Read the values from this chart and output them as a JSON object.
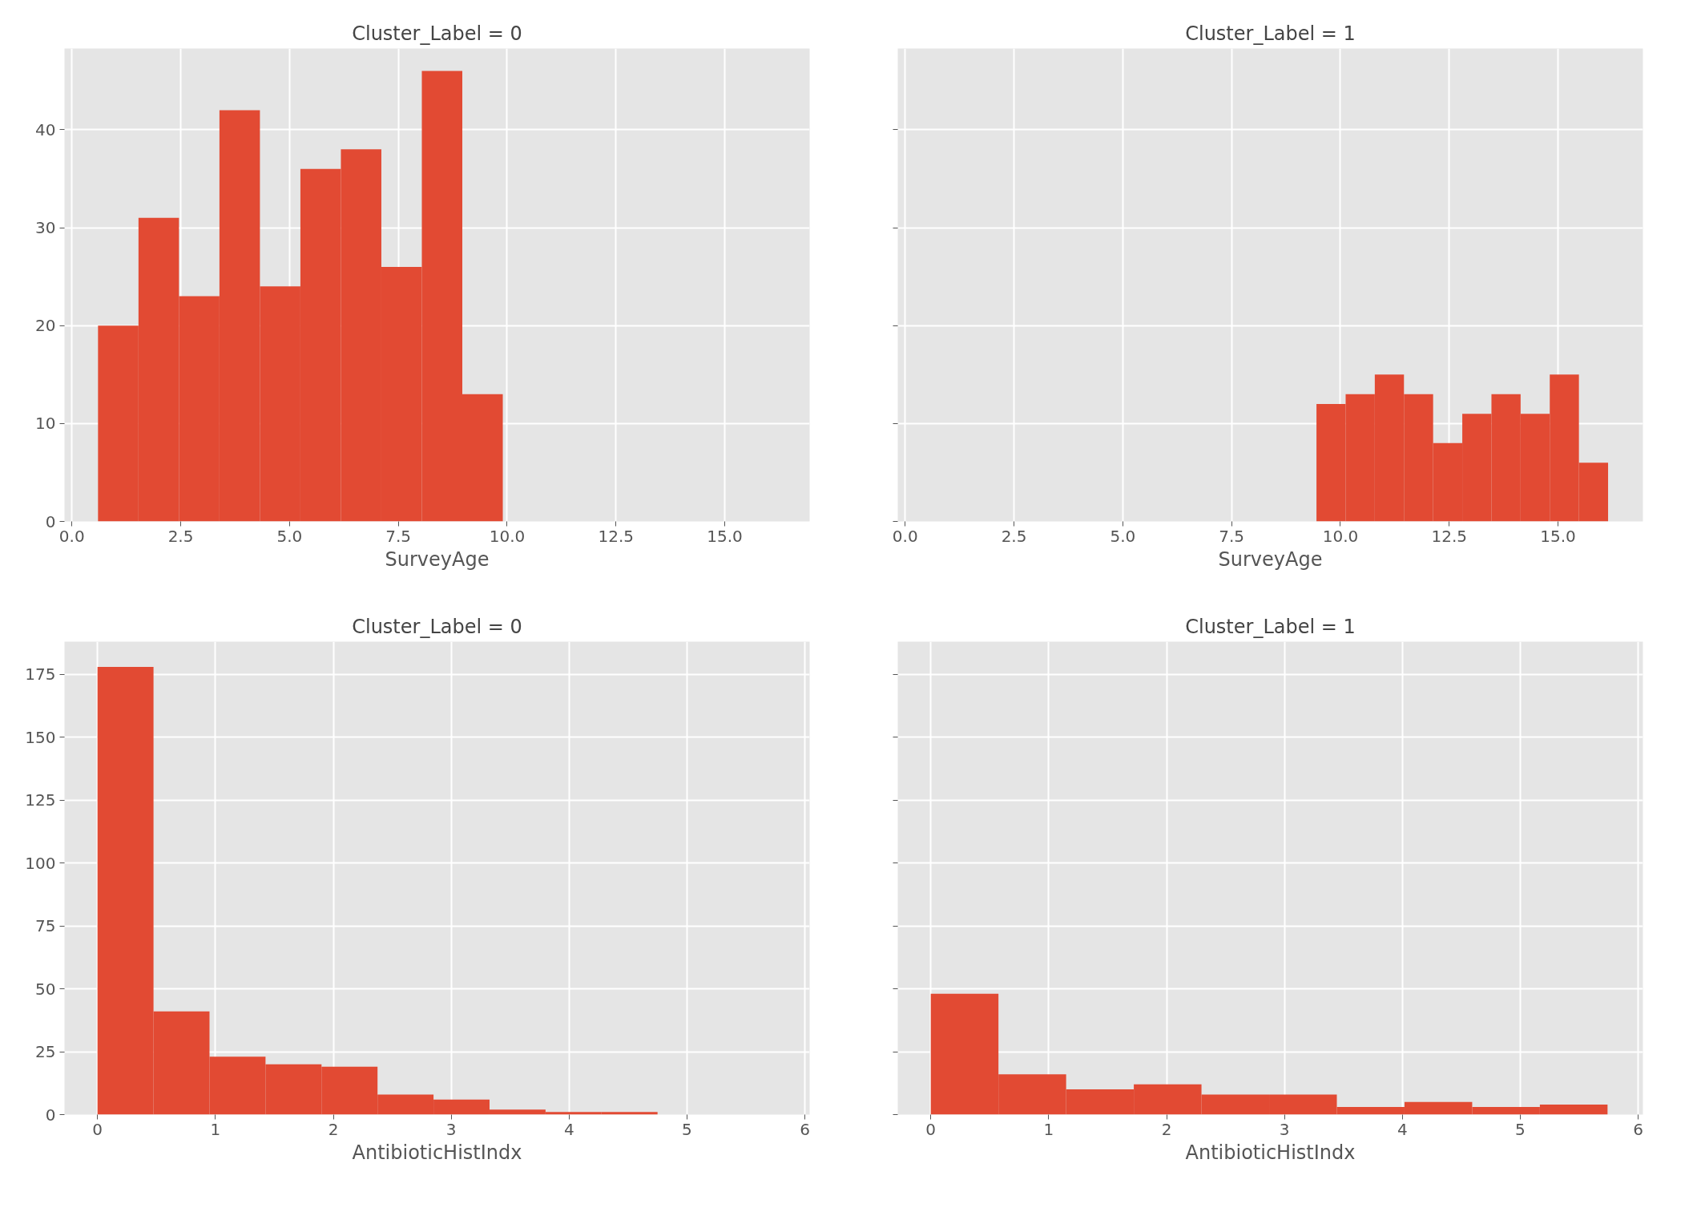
{
  "chart_data": [
    {
      "type": "histogram",
      "title": "Cluster_Label = 0",
      "xlabel": "SurveyAge",
      "color": "#e24a33",
      "bins": [
        0.6,
        1.53,
        2.46,
        3.39,
        4.32,
        5.25,
        6.18,
        7.11,
        8.04,
        8.97,
        9.9
      ],
      "values": [
        20,
        31,
        23,
        42,
        24,
        36,
        38,
        26,
        46,
        13
      ],
      "xlim": [
        -0.17,
        16.95
      ],
      "ylim": [
        0,
        48.3
      ],
      "xticks": [
        {
          "value": 0,
          "label": "0.0"
        },
        {
          "value": 2.5,
          "label": "2.5"
        },
        {
          "value": 5,
          "label": "5.0"
        },
        {
          "value": 7.5,
          "label": "7.5"
        },
        {
          "value": 10,
          "label": "10.0"
        },
        {
          "value": 12.5,
          "label": "12.5"
        },
        {
          "value": 15,
          "label": "15.0"
        }
      ],
      "yticks": [
        0,
        10,
        20,
        30,
        40
      ],
      "grid": true
    },
    {
      "type": "histogram",
      "title": "Cluster_Label = 1",
      "xlabel": "SurveyAge",
      "color": "#e24a33",
      "bins": [
        9.45,
        10.12,
        10.79,
        11.46,
        12.13,
        12.8,
        13.47,
        14.14,
        14.81,
        15.48,
        16.15
      ],
      "values": [
        12,
        13,
        15,
        13,
        8,
        11,
        13,
        11,
        15,
        6
      ],
      "xlim": [
        -0.17,
        16.95
      ],
      "ylim": [
        0,
        48.3
      ],
      "xticks": [
        {
          "value": 0,
          "label": "0.0"
        },
        {
          "value": 2.5,
          "label": "2.5"
        },
        {
          "value": 5,
          "label": "5.0"
        },
        {
          "value": 7.5,
          "label": "7.5"
        },
        {
          "value": 10,
          "label": "10.0"
        },
        {
          "value": 12.5,
          "label": "12.5"
        },
        {
          "value": 15,
          "label": "15.0"
        }
      ],
      "yticks": [
        0,
        10,
        20,
        30,
        40
      ],
      "tick_labels": "x",
      "grid": true
    },
    {
      "type": "histogram",
      "title": "Cluster_Label = 0",
      "xlabel": "AntibioticHistIndx",
      "color": "#e24a33",
      "bins": [
        0,
        0.475,
        0.95,
        1.425,
        1.9,
        2.375,
        2.85,
        3.325,
        3.8,
        4.275,
        4.75
      ],
      "values": [
        178,
        41,
        23,
        20,
        19,
        8,
        6,
        2,
        1,
        1
      ],
      "xlim": [
        -0.28,
        6.04
      ],
      "ylim": [
        0,
        188
      ],
      "xticks": [
        0,
        1,
        2,
        3,
        4,
        5,
        6
      ],
      "yticks": [
        0,
        25,
        50,
        75,
        100,
        125,
        150,
        175
      ],
      "grid": true
    },
    {
      "type": "histogram",
      "title": "Cluster_Label = 1",
      "xlabel": "AntibioticHistIndx",
      "color": "#e24a33",
      "bins": [
        0,
        0.574,
        1.148,
        1.722,
        2.296,
        2.87,
        3.444,
        4.018,
        4.592,
        5.166,
        5.74
      ],
      "values": [
        48,
        16,
        10,
        12,
        8,
        8,
        3,
        5,
        3,
        4
      ],
      "xlim": [
        -0.28,
        6.04
      ],
      "ylim": [
        0,
        188
      ],
      "xticks": [
        0,
        1,
        2,
        3,
        4,
        5,
        6
      ],
      "yticks": [
        0,
        25,
        50,
        75,
        100,
        125,
        150,
        175
      ],
      "tick_labels": "x",
      "grid": true
    }
  ]
}
